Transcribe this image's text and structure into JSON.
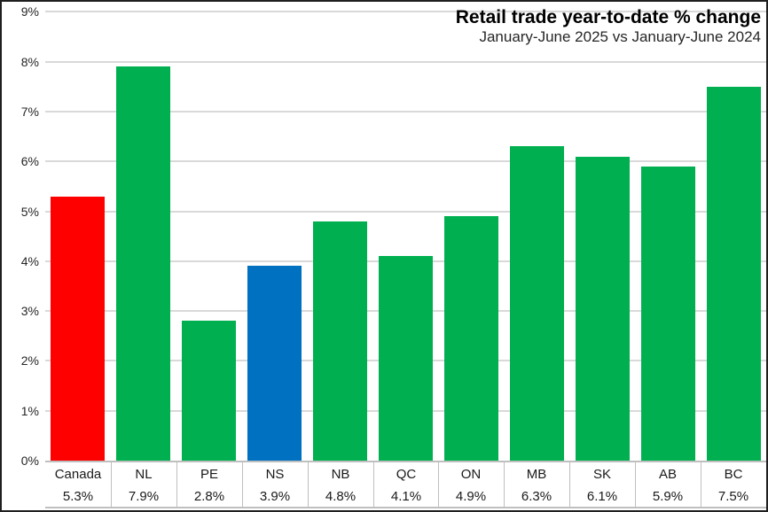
{
  "chart": {
    "title": "Retail trade year-to-date % change",
    "subtitle": "January-June 2025 vs January-June 2024"
  },
  "chart_data": {
    "type": "bar",
    "title": "Retail trade year-to-date % change",
    "subtitle": "January-June 2025 vs January-June 2024",
    "categories": [
      "Canada",
      "NL",
      "PE",
      "NS",
      "NB",
      "QC",
      "ON",
      "MB",
      "SK",
      "AB",
      "BC"
    ],
    "values": [
      5.3,
      7.9,
      2.8,
      3.9,
      4.8,
      4.1,
      4.9,
      6.3,
      6.1,
      5.9,
      7.5
    ],
    "value_labels": [
      "5.3%",
      "7.9%",
      "2.8%",
      "3.9%",
      "4.8%",
      "4.1%",
      "4.9%",
      "6.3%",
      "6.1%",
      "5.9%",
      "7.5%"
    ],
    "bar_colors": [
      "#FF0000",
      "#00B050",
      "#00B050",
      "#0070C0",
      "#00B050",
      "#00B050",
      "#00B050",
      "#00B050",
      "#00B050",
      "#00B050",
      "#00B050"
    ],
    "color_legend": {
      "canada": "#FF0000",
      "nova_scotia": "#0070C0",
      "other_provinces": "#00B050"
    },
    "xlabel": "",
    "ylabel": "",
    "ylim": [
      0,
      9
    ],
    "ytick_step": 1,
    "ytick_labels": [
      "0%",
      "1%",
      "2%",
      "3%",
      "4%",
      "5%",
      "6%",
      "7%",
      "8%",
      "9%"
    ],
    "grid": true,
    "gridline_color": "#D9D9D9",
    "axis_line_color": "#BFBFBF",
    "legend_position": "none",
    "data_table_shown": true
  }
}
